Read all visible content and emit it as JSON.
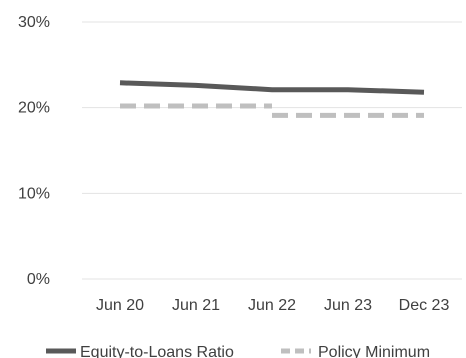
{
  "chart_data": {
    "type": "line",
    "categories": [
      "Jun 20",
      "Jun 21",
      "Jun 22",
      "Jun 23",
      "Dec 23"
    ],
    "ylim": [
      0,
      30
    ],
    "yticks": [
      0,
      10,
      20,
      30
    ],
    "ytick_labels": [
      "0%",
      "10%",
      "20%",
      "30%"
    ],
    "grid": true,
    "legend_position": "bottom",
    "series": [
      {
        "name": "Equity-to-Loans Ratio",
        "style": "solid",
        "color": "#595959",
        "values": [
          22.9,
          22.6,
          22.1,
          22.1,
          21.8
        ]
      },
      {
        "name": "Policy Minimum",
        "style": "dashed",
        "color": "#bfbfbf",
        "steps": [
          [
            0,
            20.2
          ],
          [
            2,
            20.2
          ],
          [
            2,
            19.1
          ],
          [
            4,
            19.1
          ]
        ]
      }
    ]
  }
}
